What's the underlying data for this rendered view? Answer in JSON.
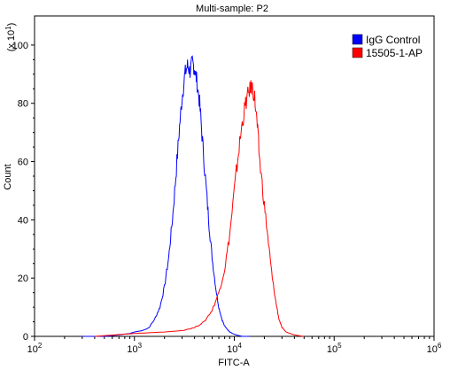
{
  "chart_data": {
    "type": "line",
    "title": "Multi-sample: P2",
    "xlabel": "FITC-A",
    "ylabel": "Count",
    "y_multiplier": "(x 10",
    "y_multiplier_exp": "1",
    "y_multiplier_close": ")",
    "x_scale": "log",
    "xlim": [
      100,
      1000000
    ],
    "ylim": [
      0,
      110
    ],
    "x_ticks": [
      {
        "base": "10",
        "exp": "2",
        "value": 100
      },
      {
        "base": "10",
        "exp": "3",
        "value": 1000
      },
      {
        "base": "10",
        "exp": "4",
        "value": 10000
      },
      {
        "base": "10",
        "exp": "5",
        "value": 100000
      },
      {
        "base": "10",
        "exp": "6",
        "value": 1000000
      }
    ],
    "y_ticks": [
      "0",
      "20",
      "40",
      "60",
      "80",
      "100"
    ],
    "legend_position": "top-right",
    "series": [
      {
        "name": "IgG Control",
        "color": "#0000ff",
        "x": [
          300,
          500,
          700,
          900,
          1000,
          1200,
          1400,
          1600,
          1800,
          2000,
          2200,
          2400,
          2600,
          2800,
          3000,
          3200,
          3400,
          3600,
          3800,
          4000,
          4200,
          4500,
          4800,
          5200,
          5600,
          6000,
          6500,
          7000,
          7500,
          8000,
          9000,
          10000,
          11000,
          12000,
          14000
        ],
        "y": [
          0,
          0,
          0.5,
          1,
          1.5,
          2,
          3,
          6,
          10,
          17,
          27,
          40,
          55,
          70,
          82,
          90,
          93,
          91,
          94,
          92,
          88,
          80,
          67,
          52,
          38,
          27,
          17,
          10,
          6,
          3.5,
          1.5,
          0.7,
          0.3,
          0,
          0
        ]
      },
      {
        "name": "15505-1-AP",
        "color": "#ff0000",
        "x": [
          400,
          1000,
          2000,
          3000,
          4000,
          5000,
          6000,
          7000,
          8000,
          9000,
          10000,
          11000,
          12000,
          13000,
          14000,
          15000,
          16000,
          17000,
          18000,
          20000,
          22000,
          24000,
          26000,
          28000,
          30000,
          33000,
          36000,
          40000,
          45000,
          50000
        ],
        "y": [
          0,
          1,
          1.5,
          2,
          3,
          5,
          9,
          15,
          23,
          35,
          50,
          63,
          73,
          80,
          84,
          86,
          82,
          72,
          60,
          45,
          32,
          20,
          12,
          6,
          3,
          1.5,
          1,
          0.5,
          0.2,
          0
        ]
      }
    ]
  }
}
